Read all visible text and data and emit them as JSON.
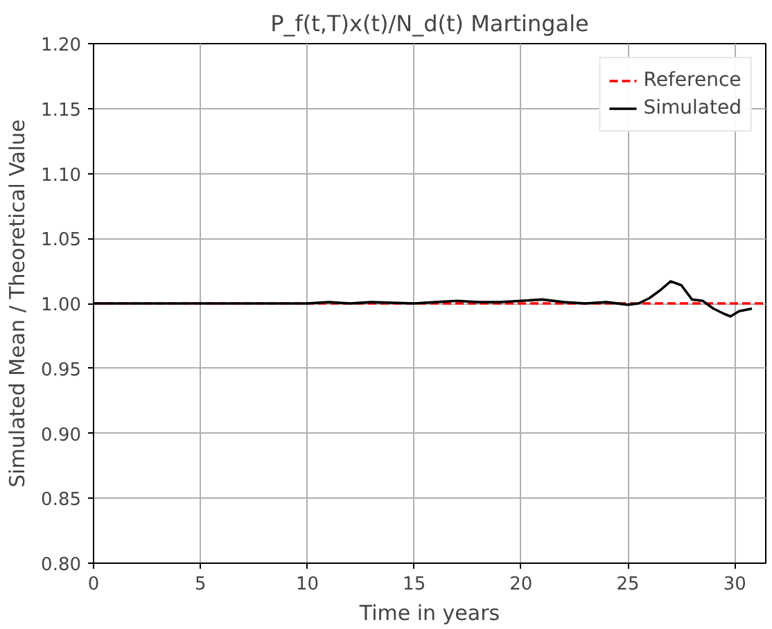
{
  "chart_data": {
    "type": "line",
    "title": "P_f(t,T)x(t)/N_d(t) Martingale",
    "xlabel": "Time in years",
    "ylabel": "Simulated Mean / Theoretical Value",
    "xlim": [
      0,
      31.45
    ],
    "ylim": [
      0.8,
      1.2
    ],
    "xticks": [
      0,
      5,
      10,
      15,
      20,
      25,
      30
    ],
    "yticks": [
      {
        "value": 0.8,
        "label": "0.80"
      },
      {
        "value": 0.85,
        "label": "0.85"
      },
      {
        "value": 0.9,
        "label": "0.90"
      },
      {
        "value": 0.95,
        "label": "0.95"
      },
      {
        "value": 1.0,
        "label": "1.00"
      },
      {
        "value": 1.05,
        "label": "1.05"
      },
      {
        "value": 1.1,
        "label": "1.10"
      },
      {
        "value": 1.15,
        "label": "1.15"
      },
      {
        "value": 1.2,
        "label": "1.20"
      }
    ],
    "grid": true,
    "legend": "top right",
    "series": [
      {
        "name": "Reference",
        "color": "#ff0000",
        "line_style": "dashed",
        "x": [
          0,
          31.45
        ],
        "values": [
          1.0,
          1.0
        ]
      },
      {
        "name": "Simulated",
        "color": "#000000",
        "line_style": "solid",
        "x": [
          0,
          2,
          5,
          8,
          10,
          11,
          12,
          13,
          15,
          16,
          17,
          18,
          19,
          20,
          21,
          22,
          23,
          24,
          25,
          25.5,
          26,
          26.5,
          27,
          27.5,
          28,
          28.5,
          29,
          29.5,
          29.8,
          30.2,
          30.8
        ],
        "values": [
          1.0,
          1.0,
          1.0,
          1.0,
          1.0,
          1.001,
          1.0,
          1.001,
          1.0,
          1.001,
          1.002,
          1.001,
          1.001,
          1.002,
          1.003,
          1.001,
          1.0,
          1.001,
          0.999,
          1.0,
          1.004,
          1.01,
          1.017,
          1.014,
          1.003,
          1.002,
          0.996,
          0.992,
          0.99,
          0.994,
          0.996
        ]
      }
    ]
  }
}
